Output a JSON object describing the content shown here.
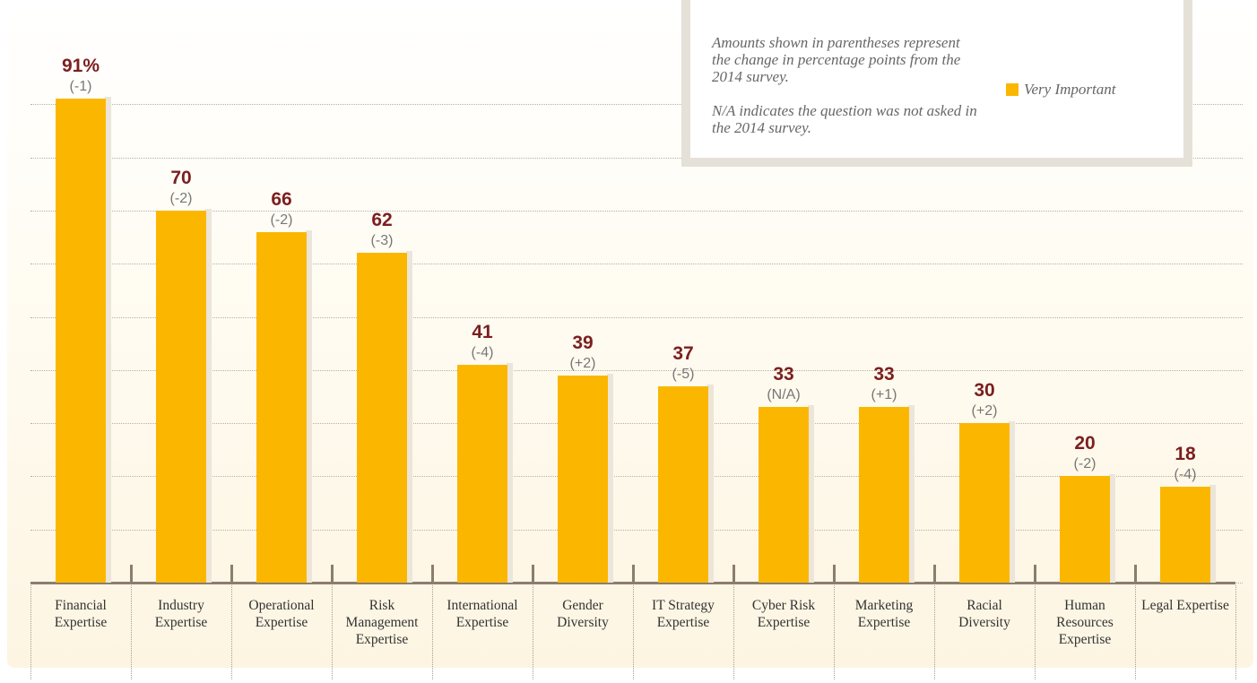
{
  "chart_data": {
    "type": "bar",
    "categories": [
      "Financial Expertise",
      "Industry Expertise",
      "Operational Expertise",
      "Risk Management Expertise",
      "International Expertise",
      "Gender Diversity",
      "IT Strategy Expertise",
      "Cyber Risk Expertise",
      "Marketing Expertise",
      "Racial Diversity",
      "Human Resources Expertise",
      "Legal Expertise"
    ],
    "series": [
      {
        "name": "Very Important",
        "color": "#fbb700",
        "values": [
          91,
          70,
          66,
          62,
          41,
          39,
          37,
          33,
          33,
          30,
          20,
          18
        ],
        "value_labels": [
          "91%",
          "70",
          "66",
          "62",
          "41",
          "39",
          "37",
          "33",
          "33",
          "30",
          "20",
          "18"
        ]
      }
    ],
    "changes": [
      "(-1)",
      "(-2)",
      "(-2)",
      "(-3)",
      "(-4)",
      "(+2)",
      "(-5)",
      "(N/A)",
      "(+1)",
      "(+2)",
      "(-2)",
      "(-4)"
    ],
    "notes": [
      "Amounts shown in parentheses represent the change in percentage points from the 2014 survey.",
      "N/A indicates the question was not asked in the 2014 survey."
    ],
    "ylim": [
      0,
      100
    ],
    "yticks": [
      0,
      10,
      20,
      30,
      40,
      50,
      60,
      70,
      80,
      90
    ],
    "grid": true,
    "legend": "upper right"
  }
}
